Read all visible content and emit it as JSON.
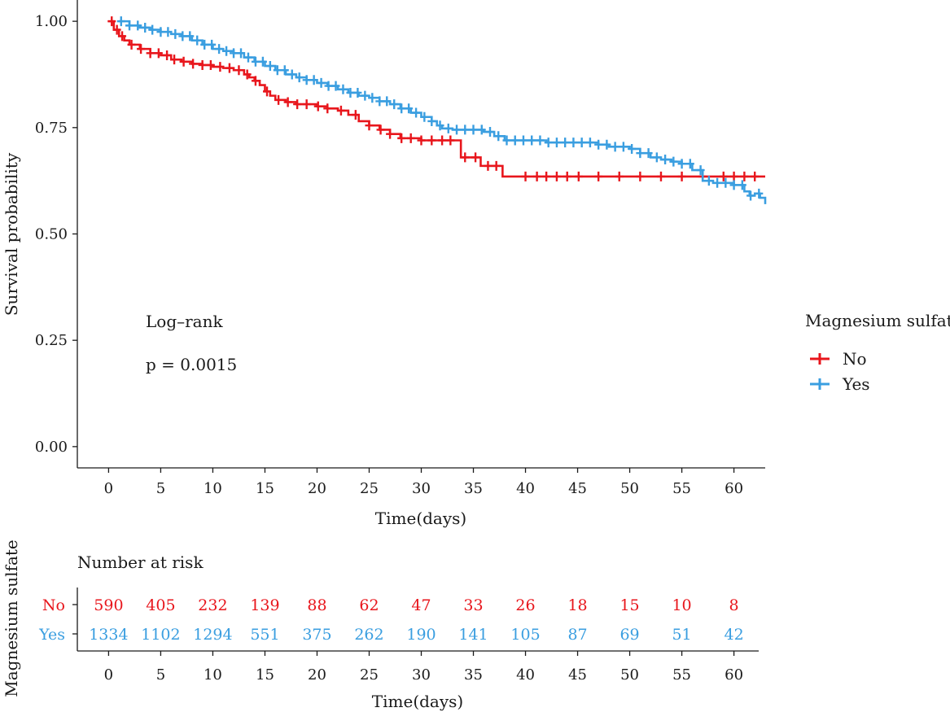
{
  "chart_data": [
    {
      "type": "line",
      "subtype": "kaplan-meier",
      "xlabel": "Time(days)",
      "ylabel": "Survival probability",
      "xlim": [
        -3,
        63
      ],
      "ylim": [
        -0.05,
        1.05
      ],
      "xticks": [
        0,
        5,
        10,
        15,
        20,
        25,
        30,
        35,
        40,
        45,
        50,
        55,
        60
      ],
      "yticks": [
        0.0,
        0.25,
        0.5,
        0.75,
        1.0
      ],
      "ytick_labels": [
        "0.00",
        "0.25",
        "0.50",
        "0.75",
        "1.00"
      ],
      "grid": false,
      "annotations": {
        "test_name": "Log–rank",
        "p_value": "p = 0.0015"
      },
      "legend": {
        "title": "Magnesium sulfate",
        "placement": "right",
        "entries": [
          {
            "label": "No",
            "color": "#e8161c"
          },
          {
            "label": "Yes",
            "color": "#3a9ee0"
          }
        ]
      },
      "series": [
        {
          "name": "No",
          "color": "#e8161c",
          "x": [
            0,
            0.5,
            1,
            1.5,
            2,
            3,
            4,
            5,
            6,
            7,
            8,
            9,
            10,
            11,
            12,
            13,
            13.5,
            14,
            14.5,
            15,
            15.5,
            16,
            17,
            18,
            20,
            21,
            22,
            23,
            24,
            25,
            26,
            27,
            28,
            30,
            31,
            32,
            33,
            33.8,
            35,
            35.7,
            36,
            37,
            37.8,
            40,
            45,
            50,
            55,
            60,
            63
          ],
          "y": [
            1.0,
            0.98,
            0.965,
            0.955,
            0.945,
            0.935,
            0.925,
            0.92,
            0.91,
            0.905,
            0.9,
            0.897,
            0.893,
            0.89,
            0.885,
            0.875,
            0.868,
            0.86,
            0.85,
            0.835,
            0.825,
            0.815,
            0.81,
            0.805,
            0.8,
            0.795,
            0.79,
            0.78,
            0.765,
            0.755,
            0.745,
            0.735,
            0.725,
            0.72,
            0.72,
            0.72,
            0.72,
            0.68,
            0.68,
            0.66,
            0.66,
            0.66,
            0.635,
            0.635,
            0.635,
            0.635,
            0.635,
            0.635,
            0.635
          ],
          "censor_x": [
            0.3,
            0.8,
            1.3,
            2.2,
            3.1,
            4.0,
            4.8,
            5.6,
            6.3,
            7.2,
            8.1,
            9.0,
            9.8,
            10.7,
            11.6,
            12.5,
            13.3,
            14.1,
            15.2,
            16.3,
            17.2,
            18.1,
            19.0,
            20.1,
            21.0,
            22.3,
            23.7,
            25.0,
            26.1,
            27.0,
            28.1,
            29.0,
            30.0,
            31.0,
            32.0,
            32.8,
            34.2,
            35.2,
            36.4,
            37.2,
            40.0,
            41.1,
            42.0,
            43.0,
            44.0,
            45.1,
            47.0,
            49.0,
            51.0,
            53.0,
            55.0,
            57.0,
            59.0,
            60.0,
            61.0,
            62.0
          ]
        },
        {
          "name": "Yes",
          "color": "#3a9ee0",
          "x": [
            1,
            2,
            3,
            4,
            5,
            6,
            7,
            8,
            9,
            10,
            11,
            12,
            13,
            14,
            15,
            16,
            17,
            18,
            19,
            20,
            21,
            22,
            23,
            24,
            25,
            26,
            27,
            28,
            29,
            30,
            31,
            31.5,
            32,
            33,
            35,
            36,
            37,
            38,
            40,
            42,
            45,
            47,
            48,
            50,
            51,
            52,
            53,
            54,
            55,
            56,
            57,
            58,
            59,
            60,
            61,
            61.5,
            62,
            62.5,
            63
          ],
          "y": [
            1.0,
            0.99,
            0.985,
            0.98,
            0.975,
            0.97,
            0.965,
            0.955,
            0.945,
            0.935,
            0.93,
            0.925,
            0.915,
            0.905,
            0.895,
            0.885,
            0.875,
            0.868,
            0.862,
            0.855,
            0.848,
            0.84,
            0.832,
            0.825,
            0.82,
            0.812,
            0.805,
            0.795,
            0.785,
            0.775,
            0.765,
            0.755,
            0.748,
            0.745,
            0.745,
            0.74,
            0.73,
            0.72,
            0.72,
            0.715,
            0.715,
            0.71,
            0.705,
            0.7,
            0.69,
            0.68,
            0.675,
            0.67,
            0.665,
            0.65,
            0.625,
            0.62,
            0.62,
            0.615,
            0.6,
            0.59,
            0.595,
            0.585,
            0.57
          ],
          "censor_x": [
            1.2,
            2.0,
            2.8,
            3.5,
            4.2,
            5.0,
            5.7,
            6.4,
            7.1,
            7.8,
            8.5,
            9.2,
            9.9,
            10.6,
            11.3,
            12.0,
            12.7,
            13.4,
            14.1,
            14.8,
            15.5,
            16.2,
            16.9,
            17.6,
            18.3,
            19.0,
            19.7,
            20.4,
            21.1,
            21.8,
            22.5,
            23.2,
            23.9,
            24.6,
            25.3,
            26.0,
            26.7,
            27.4,
            28.1,
            28.8,
            29.5,
            30.3,
            31.0,
            31.8,
            32.6,
            33.4,
            34.2,
            35.0,
            35.8,
            36.6,
            37.4,
            38.2,
            39.0,
            39.8,
            40.6,
            41.4,
            42.2,
            43.0,
            43.8,
            44.6,
            45.4,
            46.2,
            47.0,
            47.8,
            48.6,
            49.4,
            50.2,
            51.0,
            51.8,
            52.6,
            53.4,
            54.2,
            55.0,
            55.8,
            56.8,
            57.6,
            58.4,
            59.2,
            60.0,
            60.8,
            61.6,
            62.4
          ]
        }
      ]
    },
    {
      "type": "table",
      "title": "Number at risk",
      "xlabel": "Time(days)",
      "ylabel": "Magnesium sulfate",
      "xticks": [
        0,
        5,
        10,
        15,
        20,
        25,
        30,
        35,
        40,
        45,
        50,
        55,
        60
      ],
      "rows": [
        {
          "label": "No",
          "color": "#e8161c",
          "values": [
            "590",
            "405",
            "232",
            "139",
            "88",
            "62",
            "47",
            "33",
            "26",
            "18",
            "15",
            "10",
            "8"
          ]
        },
        {
          "label": "Yes",
          "color": "#3a9ee0",
          "values": [
            "1334",
            "1102",
            "1294",
            "551",
            "375",
            "262",
            "190",
            "141",
            "105",
            "87",
            "69",
            "51",
            "42"
          ]
        }
      ]
    }
  ]
}
